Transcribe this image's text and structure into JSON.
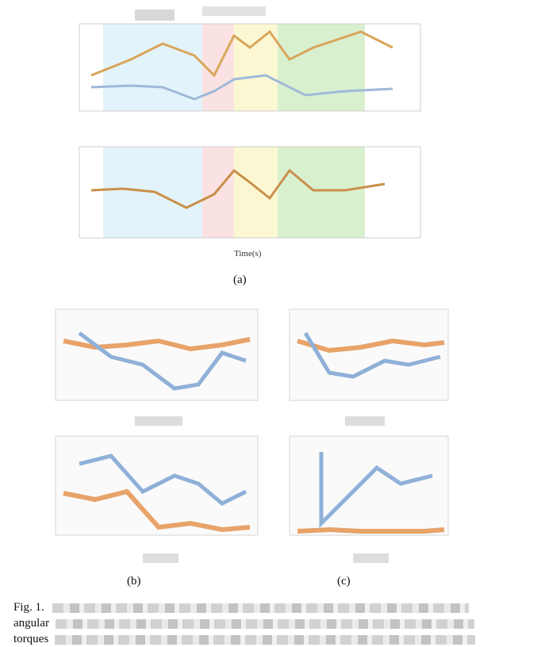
{
  "figure_a": {
    "xlabel": "Time(s)",
    "sublabel": "(a)",
    "phase_colors": [
      "#e3f3fb",
      "#fbe2e2",
      "#fbf7d2",
      "#d9f0cf"
    ],
    "upper": {
      "series_color": "#d9a55b",
      "secondary_color": "#9fb9d8"
    },
    "lower": {
      "series_color": "#c98f4a"
    }
  },
  "figure_b": {
    "sublabel": "(b)"
  },
  "figure_c": {
    "sublabel": "(c)"
  },
  "caption": {
    "lines": [
      "Fig. 1.",
      "angular",
      "torques"
    ]
  },
  "colors": {
    "orange": "#e8a36a",
    "blue": "#8fb0d8",
    "grid": "#cccccc",
    "tick": "#999999"
  }
}
